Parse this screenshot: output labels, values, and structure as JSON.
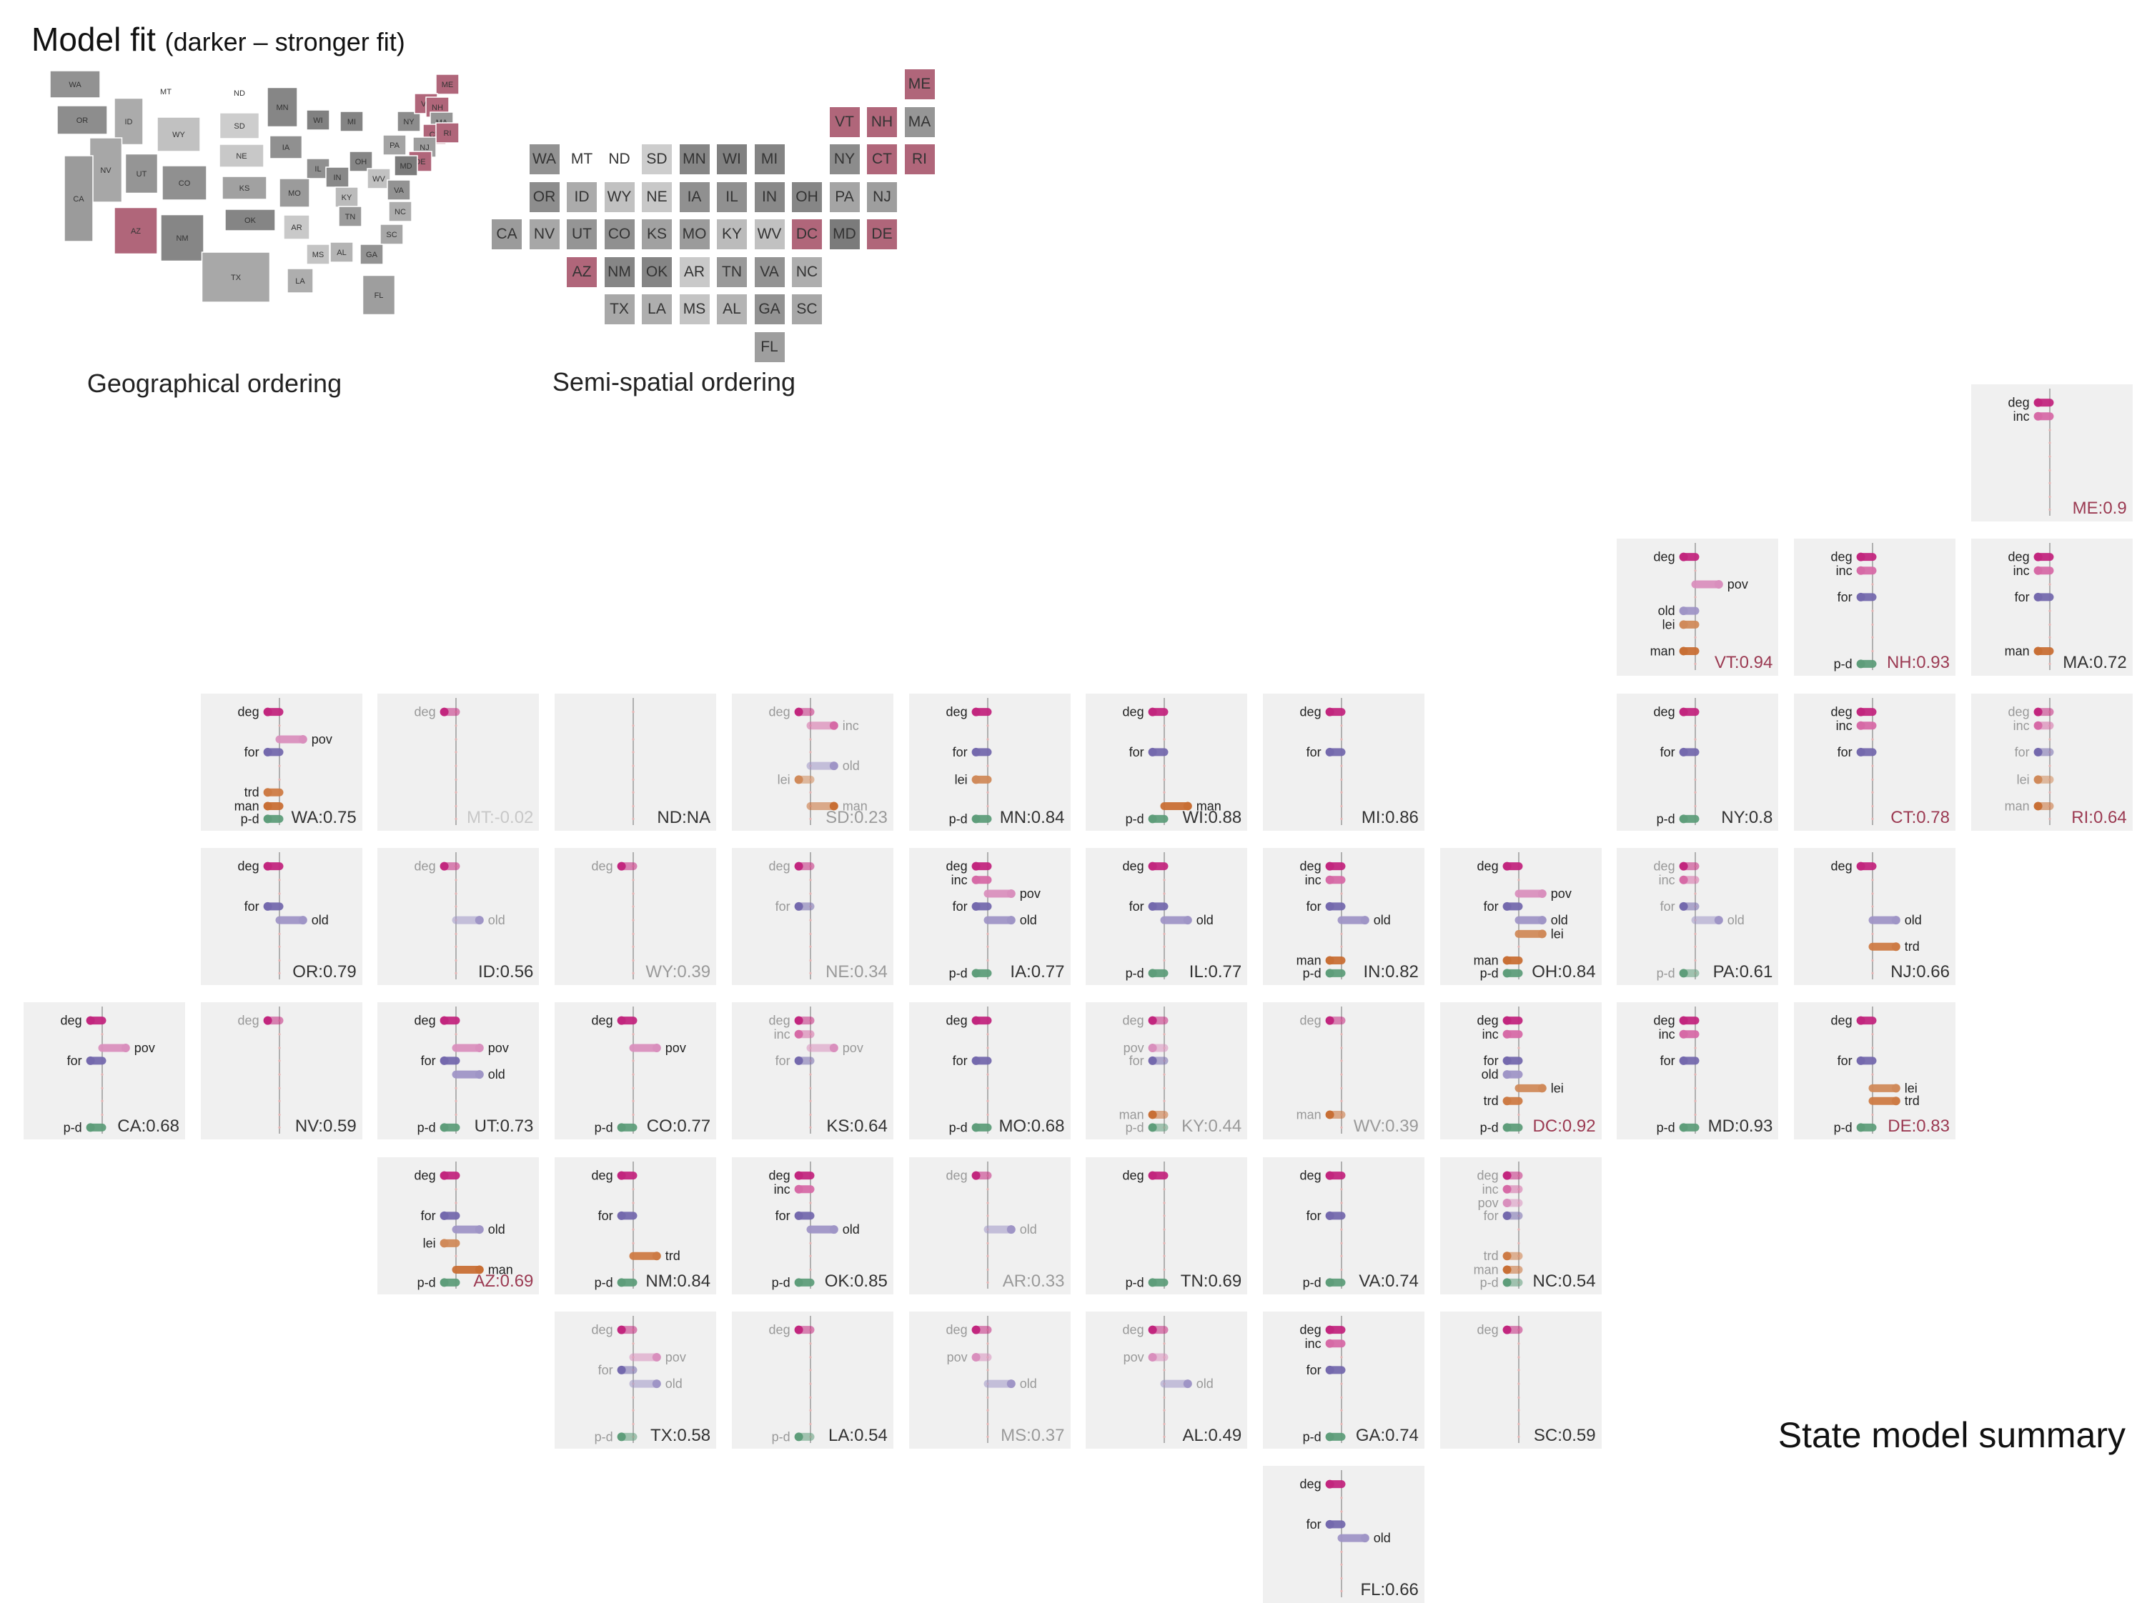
{
  "header": {
    "title": "Model fit",
    "subtitle": "(darker – stronger fit)"
  },
  "captions": {
    "geo": "Geographical ordering",
    "semi": "Semi-spatial ordering",
    "summary": "State model summary"
  },
  "colors": {
    "deg": "#c2267e",
    "inc": "#d66aa6",
    "pov": "#d98fbd",
    "for": "#7469ad",
    "old": "#9f95c6",
    "lei": "#d08a5a",
    "trd": "#cd7b45",
    "man": "#c86f35",
    "p-d": "#5e9d7a",
    "axis": "#9a9a9a",
    "fill_strong_low": "#c9c9c9",
    "fill_strong_high": "#7f7f7f",
    "fill_red": "#b0667a"
  },
  "chart_data": {
    "type": "bar",
    "variables": [
      "deg",
      "inc",
      "pov",
      "for",
      "old",
      "lei",
      "trd",
      "man",
      "p-d"
    ],
    "value_range": [
      -1,
      1
    ],
    "states": [
      {
        "abbr": "ME",
        "fit": "0.9",
        "col": 11,
        "row": 0,
        "red": true,
        "coef": {
          "deg": -0.2,
          "inc": -0.2
        }
      },
      {
        "abbr": "VT",
        "fit": "0.94",
        "col": 9,
        "row": 1,
        "red": true,
        "coef": {
          "deg": -0.2,
          "pov": 0.4,
          "old": -0.2,
          "lei": -0.2,
          "man": -0.2
        }
      },
      {
        "abbr": "NH",
        "fit": "0.93",
        "col": 10,
        "row": 1,
        "red": true,
        "coef": {
          "deg": -0.2,
          "inc": -0.2,
          "for": -0.2,
          "p-d": -0.2
        }
      },
      {
        "abbr": "MA",
        "fit": "0.72",
        "col": 11,
        "row": 1,
        "coef": {
          "deg": -0.2,
          "inc": -0.2,
          "for": -0.2,
          "man": -0.2
        }
      },
      {
        "abbr": "WA",
        "fit": "0.75",
        "col": 1,
        "row": 2,
        "coef": {
          "deg": -0.2,
          "pov": 0.4,
          "for": -0.2,
          "trd": -0.2,
          "man": -0.2,
          "p-d": -0.2
        }
      },
      {
        "abbr": "MT",
        "fit": "-0.02",
        "col": 2,
        "row": 2,
        "coef": {
          "deg": -0.2
        }
      },
      {
        "abbr": "ND",
        "fit": "NA",
        "col": 3,
        "row": 2,
        "coef": {}
      },
      {
        "abbr": "SD",
        "fit": "0.23",
        "col": 4,
        "row": 2,
        "coef": {
          "deg": -0.2,
          "inc": 0.4,
          "old": 0.4,
          "lei": -0.2,
          "man": 0.4
        }
      },
      {
        "abbr": "MN",
        "fit": "0.84",
        "col": 5,
        "row": 2,
        "coef": {
          "deg": -0.2,
          "for": -0.2,
          "lei": -0.2,
          "p-d": -0.2
        }
      },
      {
        "abbr": "WI",
        "fit": "0.88",
        "col": 6,
        "row": 2,
        "coef": {
          "deg": -0.2,
          "for": -0.2,
          "man": 0.4,
          "p-d": -0.2
        }
      },
      {
        "abbr": "MI",
        "fit": "0.86",
        "col": 7,
        "row": 2,
        "coef": {
          "deg": -0.2,
          "for": -0.2
        }
      },
      {
        "abbr": "NY",
        "fit": "0.8",
        "col": 9,
        "row": 2,
        "coef": {
          "deg": -0.2,
          "for": -0.2,
          "p-d": -0.2
        }
      },
      {
        "abbr": "CT",
        "fit": "0.78",
        "col": 10,
        "row": 2,
        "red": true,
        "coef": {
          "deg": -0.2,
          "inc": -0.2,
          "for": -0.2
        }
      },
      {
        "abbr": "RI",
        "fit": "0.64",
        "col": 11,
        "row": 2,
        "red": true,
        "coef": {
          "deg": -0.2,
          "inc": -0.2,
          "for": -0.2,
          "lei": -0.2,
          "man": -0.2
        }
      },
      {
        "abbr": "OR",
        "fit": "0.79",
        "col": 1,
        "row": 3,
        "coef": {
          "deg": -0.2,
          "for": -0.2,
          "old": 0.4
        }
      },
      {
        "abbr": "ID",
        "fit": "0.56",
        "col": 2,
        "row": 3,
        "coef": {
          "deg": -0.2,
          "old": 0.4
        }
      },
      {
        "abbr": "WY",
        "fit": "0.39",
        "col": 3,
        "row": 3,
        "coef": {
          "deg": -0.2
        }
      },
      {
        "abbr": "NE",
        "fit": "0.34",
        "col": 4,
        "row": 3,
        "coef": {
          "deg": -0.2,
          "for": -0.2
        }
      },
      {
        "abbr": "IA",
        "fit": "0.77",
        "col": 5,
        "row": 3,
        "coef": {
          "deg": -0.2,
          "inc": -0.2,
          "pov": 0.4,
          "for": -0.2,
          "old": 0.4,
          "p-d": -0.2
        }
      },
      {
        "abbr": "IL",
        "fit": "0.77",
        "col": 6,
        "row": 3,
        "coef": {
          "deg": -0.2,
          "for": -0.2,
          "old": 0.4,
          "p-d": -0.2
        }
      },
      {
        "abbr": "IN",
        "fit": "0.82",
        "col": 7,
        "row": 3,
        "coef": {
          "deg": -0.2,
          "inc": -0.2,
          "for": -0.2,
          "old": 0.4,
          "man": -0.2,
          "p-d": -0.2
        }
      },
      {
        "abbr": "OH",
        "fit": "0.84",
        "col": 8,
        "row": 3,
        "coef": {
          "deg": -0.2,
          "pov": 0.4,
          "for": -0.2,
          "old": 0.4,
          "lei": 0.4,
          "man": -0.2,
          "p-d": -0.2
        }
      },
      {
        "abbr": "PA",
        "fit": "0.61",
        "col": 9,
        "row": 3,
        "coef": {
          "deg": -0.2,
          "inc": -0.2,
          "for": -0.2,
          "old": 0.4,
          "p-d": -0.2
        }
      },
      {
        "abbr": "NJ",
        "fit": "0.66",
        "col": 10,
        "row": 3,
        "coef": {
          "deg": -0.2,
          "old": 0.4,
          "trd": 0.4
        }
      },
      {
        "abbr": "CA",
        "fit": "0.68",
        "col": 0,
        "row": 4,
        "coef": {
          "deg": -0.2,
          "pov": 0.4,
          "for": -0.2,
          "p-d": -0.2
        }
      },
      {
        "abbr": "NV",
        "fit": "0.59",
        "col": 1,
        "row": 4,
        "coef": {
          "deg": -0.2
        }
      },
      {
        "abbr": "UT",
        "fit": "0.73",
        "col": 2,
        "row": 4,
        "coef": {
          "deg": -0.2,
          "pov": 0.4,
          "for": -0.2,
          "old": 0.4,
          "p-d": -0.2
        }
      },
      {
        "abbr": "CO",
        "fit": "0.77",
        "col": 3,
        "row": 4,
        "coef": {
          "deg": -0.2,
          "pov": 0.4,
          "p-d": -0.2
        }
      },
      {
        "abbr": "KS",
        "fit": "0.64",
        "col": 4,
        "row": 4,
        "coef": {
          "deg": -0.2,
          "inc": -0.2,
          "pov": 0.4,
          "for": -0.2
        }
      },
      {
        "abbr": "MO",
        "fit": "0.68",
        "col": 5,
        "row": 4,
        "coef": {
          "deg": -0.2,
          "for": -0.2,
          "p-d": -0.2
        }
      },
      {
        "abbr": "KY",
        "fit": "0.44",
        "col": 6,
        "row": 4,
        "coef": {
          "deg": -0.2,
          "pov": -0.2,
          "for": -0.2,
          "man": -0.2,
          "p-d": -0.2
        }
      },
      {
        "abbr": "WV",
        "fit": "0.39",
        "col": 7,
        "row": 4,
        "coef": {
          "deg": -0.2,
          "man": -0.2
        }
      },
      {
        "abbr": "DC",
        "fit": "0.92",
        "col": 8,
        "row": 4,
        "red": true,
        "coef": {
          "deg": -0.2,
          "inc": -0.2,
          "for": -0.2,
          "old": -0.2,
          "lei": 0.4,
          "trd": -0.2,
          "p-d": -0.2
        }
      },
      {
        "abbr": "MD",
        "fit": "0.93",
        "col": 9,
        "row": 4,
        "coef": {
          "deg": -0.2,
          "inc": -0.2,
          "for": -0.2,
          "p-d": -0.2
        }
      },
      {
        "abbr": "DE",
        "fit": "0.83",
        "col": 10,
        "row": 4,
        "red": true,
        "coef": {
          "deg": -0.2,
          "for": -0.2,
          "lei": 0.4,
          "trd": 0.4,
          "p-d": -0.2
        }
      },
      {
        "abbr": "AZ",
        "fit": "0.69",
        "col": 2,
        "row": 5,
        "red": true,
        "coef": {
          "deg": -0.2,
          "for": -0.2,
          "old": 0.4,
          "lei": -0.2,
          "man": 0.4,
          "p-d": -0.2
        }
      },
      {
        "abbr": "NM",
        "fit": "0.84",
        "col": 3,
        "row": 5,
        "coef": {
          "deg": -0.2,
          "for": -0.2,
          "trd": 0.4,
          "p-d": -0.2
        }
      },
      {
        "abbr": "OK",
        "fit": "0.85",
        "col": 4,
        "row": 5,
        "coef": {
          "deg": -0.2,
          "inc": -0.2,
          "for": -0.2,
          "old": 0.4,
          "p-d": -0.2
        }
      },
      {
        "abbr": "AR",
        "fit": "0.33",
        "col": 5,
        "row": 5,
        "coef": {
          "deg": -0.2,
          "old": 0.4
        }
      },
      {
        "abbr": "TN",
        "fit": "0.69",
        "col": 6,
        "row": 5,
        "coef": {
          "deg": -0.2,
          "p-d": -0.2
        }
      },
      {
        "abbr": "VA",
        "fit": "0.74",
        "col": 7,
        "row": 5,
        "coef": {
          "deg": -0.2,
          "for": -0.2,
          "p-d": -0.2
        }
      },
      {
        "abbr": "NC",
        "fit": "0.54",
        "col": 8,
        "row": 5,
        "coef": {
          "deg": -0.2,
          "inc": -0.2,
          "pov": -0.2,
          "for": -0.2,
          "trd": -0.2,
          "man": -0.2,
          "p-d": -0.2
        }
      },
      {
        "abbr": "TX",
        "fit": "0.58",
        "col": 3,
        "row": 6,
        "coef": {
          "deg": -0.2,
          "pov": 0.4,
          "for": -0.2,
          "old": 0.4,
          "p-d": -0.2
        }
      },
      {
        "abbr": "LA",
        "fit": "0.54",
        "col": 4,
        "row": 6,
        "coef": {
          "deg": -0.2,
          "p-d": -0.2
        }
      },
      {
        "abbr": "MS",
        "fit": "0.37",
        "col": 5,
        "row": 6,
        "coef": {
          "deg": -0.2,
          "pov": -0.2,
          "old": 0.4
        }
      },
      {
        "abbr": "AL",
        "fit": "0.49",
        "col": 6,
        "row": 6,
        "coef": {
          "deg": -0.2,
          "pov": -0.2,
          "old": 0.4
        }
      },
      {
        "abbr": "GA",
        "fit": "0.74",
        "col": 7,
        "row": 6,
        "coef": {
          "deg": -0.2,
          "inc": -0.2,
          "for": -0.2,
          "p-d": -0.2
        }
      },
      {
        "abbr": "SC",
        "fit": "0.59",
        "col": 8,
        "row": 6,
        "coef": {
          "deg": -0.2
        }
      },
      {
        "abbr": "FL",
        "fit": "0.66",
        "col": 7,
        "row": 7,
        "coef": {
          "deg": -0.2,
          "for": -0.2,
          "old": 0.4
        }
      }
    ]
  },
  "semi_spatial": [
    {
      "abbr": "ME",
      "c": 11,
      "r": 0
    },
    {
      "abbr": "VT",
      "c": 9,
      "r": 1
    },
    {
      "abbr": "NH",
      "c": 10,
      "r": 1
    },
    {
      "abbr": "MA",
      "c": 11,
      "r": 1
    },
    {
      "abbr": "WA",
      "c": 1,
      "r": 2
    },
    {
      "abbr": "MT",
      "c": 2,
      "r": 2
    },
    {
      "abbr": "ND",
      "c": 3,
      "r": 2
    },
    {
      "abbr": "SD",
      "c": 4,
      "r": 2
    },
    {
      "abbr": "MN",
      "c": 5,
      "r": 2
    },
    {
      "abbr": "WI",
      "c": 6,
      "r": 2
    },
    {
      "abbr": "MI",
      "c": 7,
      "r": 2
    },
    {
      "abbr": "NY",
      "c": 9,
      "r": 2
    },
    {
      "abbr": "CT",
      "c": 10,
      "r": 2
    },
    {
      "abbr": "RI",
      "c": 11,
      "r": 2
    },
    {
      "abbr": "OR",
      "c": 1,
      "r": 3
    },
    {
      "abbr": "ID",
      "c": 2,
      "r": 3
    },
    {
      "abbr": "WY",
      "c": 3,
      "r": 3
    },
    {
      "abbr": "NE",
      "c": 4,
      "r": 3
    },
    {
      "abbr": "IA",
      "c": 5,
      "r": 3
    },
    {
      "abbr": "IL",
      "c": 6,
      "r": 3
    },
    {
      "abbr": "IN",
      "c": 7,
      "r": 3
    },
    {
      "abbr": "OH",
      "c": 8,
      "r": 3
    },
    {
      "abbr": "PA",
      "c": 9,
      "r": 3
    },
    {
      "abbr": "NJ",
      "c": 10,
      "r": 3
    },
    {
      "abbr": "CA",
      "c": 0,
      "r": 4
    },
    {
      "abbr": "NV",
      "c": 1,
      "r": 4
    },
    {
      "abbr": "UT",
      "c": 2,
      "r": 4
    },
    {
      "abbr": "CO",
      "c": 3,
      "r": 4
    },
    {
      "abbr": "KS",
      "c": 4,
      "r": 4
    },
    {
      "abbr": "MO",
      "c": 5,
      "r": 4
    },
    {
      "abbr": "KY",
      "c": 6,
      "r": 4
    },
    {
      "abbr": "WV",
      "c": 7,
      "r": 4
    },
    {
      "abbr": "DC",
      "c": 8,
      "r": 4
    },
    {
      "abbr": "MD",
      "c": 9,
      "r": 4
    },
    {
      "abbr": "DE",
      "c": 10,
      "r": 4
    },
    {
      "abbr": "AZ",
      "c": 2,
      "r": 5
    },
    {
      "abbr": "NM",
      "c": 3,
      "r": 5
    },
    {
      "abbr": "OK",
      "c": 4,
      "r": 5
    },
    {
      "abbr": "AR",
      "c": 5,
      "r": 5
    },
    {
      "abbr": "TN",
      "c": 6,
      "r": 5
    },
    {
      "abbr": "VA",
      "c": 7,
      "r": 5
    },
    {
      "abbr": "NC",
      "c": 8,
      "r": 5
    },
    {
      "abbr": "TX",
      "c": 3,
      "r": 6
    },
    {
      "abbr": "LA",
      "c": 4,
      "r": 6
    },
    {
      "abbr": "MS",
      "c": 5,
      "r": 6
    },
    {
      "abbr": "AL",
      "c": 6,
      "r": 6
    },
    {
      "abbr": "GA",
      "c": 7,
      "r": 6
    },
    {
      "abbr": "SC",
      "c": 8,
      "r": 6
    },
    {
      "abbr": "FL",
      "c": 7,
      "r": 7
    }
  ],
  "geo_labels": [
    "WA",
    "MT",
    "ND",
    "OR",
    "ID",
    "WY",
    "SD",
    "MN",
    "WI",
    "MI",
    "NE",
    "IA",
    "IL",
    "IN",
    "OH",
    "PA",
    "NY",
    "ME",
    "VT",
    "NH",
    "MA",
    "CT",
    "RI",
    "NJ",
    "DE",
    "MD",
    "WV",
    "VA",
    "KY",
    "NV",
    "UT",
    "CO",
    "KS",
    "MO",
    "CA",
    "AZ",
    "NM",
    "OK",
    "AR",
    "TN",
    "NC",
    "SC",
    "MS",
    "AL",
    "GA",
    "TX",
    "LA",
    "FL"
  ]
}
